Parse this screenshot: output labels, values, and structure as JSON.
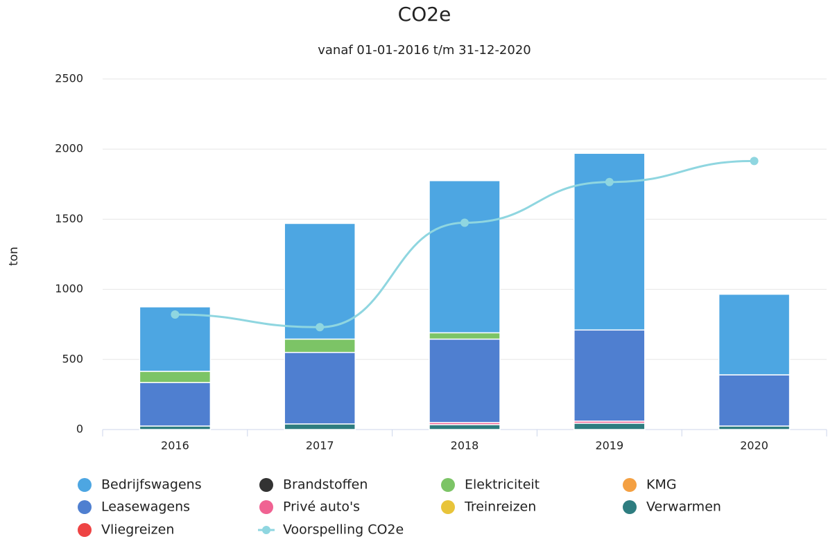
{
  "chart_data": {
    "type": "bar",
    "stacked": true,
    "title": "CO2e",
    "subtitle": "vanaf 01-01-2016 t/m 31-12-2020",
    "y_label": "ton",
    "categories": [
      "2016",
      "2017",
      "2018",
      "2019",
      "2020"
    ],
    "ylim": [
      0,
      2500
    ],
    "yticks": [
      0,
      500,
      1000,
      1500,
      2000,
      2500
    ],
    "grid": true,
    "series": [
      {
        "name": "Bedrijfswagens",
        "color": "#4da6e2",
        "values": [
          460,
          825,
          1085,
          1260,
          575
        ]
      },
      {
        "name": "Brandstoffen",
        "color": "#333333",
        "values": [
          0,
          0,
          0,
          0,
          0
        ]
      },
      {
        "name": "Elektriciteit",
        "color": "#7cc466",
        "values": [
          80,
          95,
          45,
          0,
          0
        ]
      },
      {
        "name": "KMG",
        "color": "#f4a042",
        "values": [
          0,
          0,
          0,
          0,
          0
        ]
      },
      {
        "name": "Leasewagens",
        "color": "#4f7fd0",
        "values": [
          310,
          510,
          595,
          650,
          365
        ]
      },
      {
        "name": "Privé auto's",
        "color": "#f06292",
        "values": [
          0,
          0,
          15,
          15,
          0
        ]
      },
      {
        "name": "Treinreizen",
        "color": "#e8c43a",
        "values": [
          0,
          0,
          0,
          0,
          0
        ]
      },
      {
        "name": "Verwarmen",
        "color": "#2e7d80",
        "values": [
          25,
          40,
          35,
          45,
          25
        ]
      },
      {
        "name": "Vliegreizen",
        "color": "#ee4444",
        "values": [
          0,
          0,
          0,
          0,
          0
        ]
      },
      {
        "name": "Voorspelling CO2e",
        "color": "#8fd6e0",
        "type": "line",
        "values": [
          820,
          730,
          1475,
          1765,
          1915
        ]
      }
    ]
  }
}
